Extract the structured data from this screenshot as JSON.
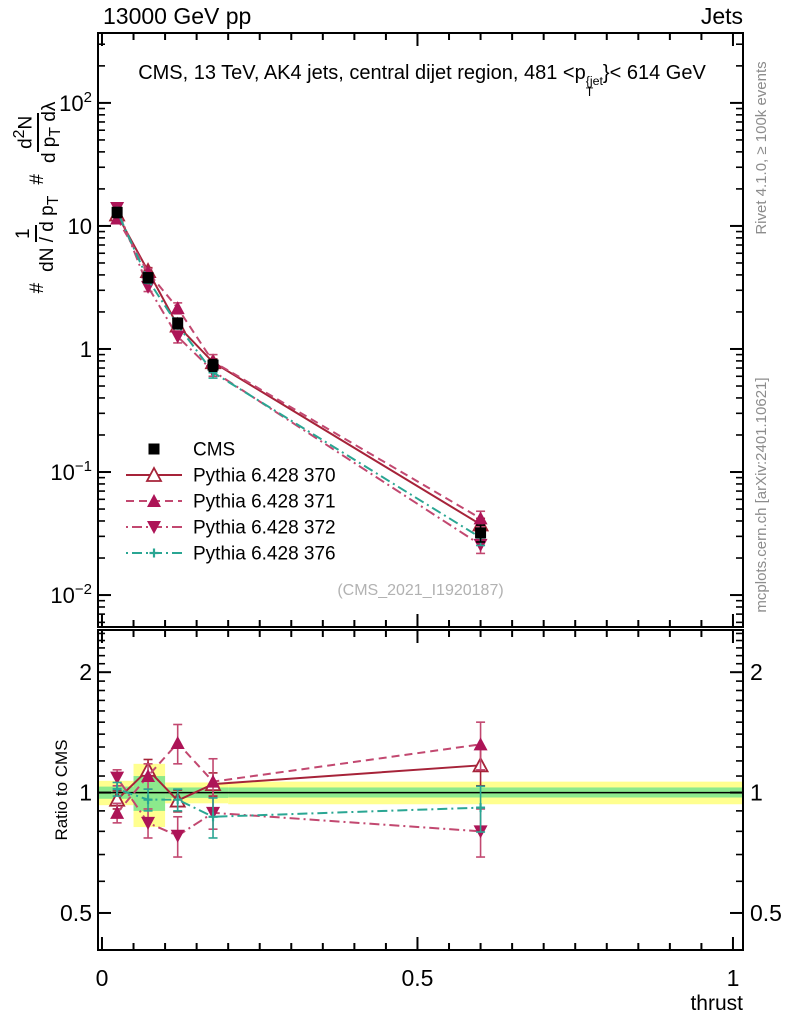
{
  "header": {
    "left": "13000 GeV pp",
    "right": "Jets"
  },
  "title": {
    "pre": "CMS, 13 TeV, AK4 jets, central dijet region, 481 <p",
    "sup": "{jet",
    "sub": "T",
    "post": "}< 614 GeV"
  },
  "ylabel_main": {
    "hash1": "#",
    "f1_num": "1",
    "f1_den_a": "dN / d p",
    "f1_den_sub": "T",
    "hash2": "#",
    "f2_num_a": "d",
    "f2_num_sup": "2",
    "f2_num_b": "N",
    "f2_den_a": "d p",
    "f2_den_sub": "T",
    "f2_den_b": " dλ"
  },
  "ylabel_ratio": "Ratio to CMS",
  "xlabel": "thrust",
  "watermark": "(CMS_2021_I1920187)",
  "side_notes": {
    "top": "Rivet 4.1.0, ≥ 100k events",
    "bottom": "mcplots.cern.ch [arXiv:2401.10621]"
  },
  "chart_data": {
    "type": "line",
    "title": "CMS, 13 TeV, AK4 jets, central dijet region, 481 < pT^jet < 614 GeV",
    "xlabel": "thrust",
    "ylabel_main": "# 1/(dN/dpT) # d2N/(dpT dlambda)",
    "ylabel_ratio": "Ratio to CMS",
    "x_points": [
      0.024,
      0.073,
      0.12,
      0.176,
      0.6
    ],
    "axes": {
      "x": {
        "lim": [
          -0.0063,
          1.0159
        ],
        "major_ticks": [
          0,
          0.5,
          1
        ],
        "tick_labels": [
          "0",
          "0.5",
          "1"
        ],
        "minor_step": 0.05
      },
      "main": {
        "log": true,
        "lim": [
          0.0055,
          370
        ],
        "decade_label_exps": [
          2,
          1,
          0,
          -1,
          -2
        ]
      },
      "ratio": {
        "log": true,
        "lim": [
          0.404,
          2.55
        ],
        "major_ticks": [
          0.5,
          1,
          2
        ],
        "major_labels": [
          "0.5",
          "1",
          "2"
        ],
        "minor_range": [
          0.4,
          2.5
        ],
        "minor_step": 0.1
      }
    },
    "reference_line": 1,
    "band_colors": {
      "yellow": "#ffff8f",
      "green": "#8ce98c"
    },
    "bands": [
      {
        "x0": -0.0063,
        "x1": 0.05,
        "yellow": [
          0.93,
          1.07
        ],
        "green": [
          0.965,
          1.035
        ]
      },
      {
        "x0": 0.05,
        "x1": 0.1,
        "yellow": [
          0.82,
          1.18
        ],
        "green": [
          0.9,
          1.1
        ]
      },
      {
        "x0": 0.1,
        "x1": 0.2,
        "yellow": [
          0.94,
          1.06
        ],
        "green": [
          0.97,
          1.03
        ]
      },
      {
        "x0": 0.2,
        "x1": 1.0159,
        "yellow": [
          0.935,
          1.065
        ],
        "green": [
          0.972,
          1.03
        ]
      }
    ],
    "series": [
      {
        "name": "CMS",
        "marker": "square",
        "line": "none",
        "color": "#000000",
        "marker_color": "#000000",
        "values": [
          12.9,
          3.8,
          1.62,
          0.74,
          0.032
        ],
        "errors": [
          1.2,
          0.35,
          0.16,
          0.08,
          0.005
        ]
      },
      {
        "name": "Pythia 6.428 370",
        "marker": "triangle-open",
        "line": "solid",
        "color": "#a62339",
        "marker_color": "#a62339",
        "values": [
          12.4,
          4.3,
          1.55,
          0.78,
          0.0375
        ],
        "errors": [
          0.55,
          0.28,
          0.1,
          0.05,
          0.0045
        ],
        "ratio": [
          0.96,
          1.14,
          0.955,
          1.05,
          1.17
        ],
        "ratio_errors": [
          0.05,
          0.07,
          0.06,
          0.07,
          0.13
        ]
      },
      {
        "name": "Pythia 6.428 371",
        "marker": "triangle-up",
        "line": "dashed",
        "color": "#c24870",
        "marker_color": "#ad1457",
        "values": [
          11.5,
          4.2,
          2.15,
          0.79,
          0.042
        ],
        "errors": [
          0.55,
          0.3,
          0.22,
          0.11,
          0.006
        ],
        "ratio": [
          0.89,
          1.1,
          1.33,
          1.065,
          1.32
        ],
        "ratio_errors": [
          0.05,
          0.08,
          0.15,
          0.15,
          0.18
        ]
      },
      {
        "name": "Pythia 6.428 372",
        "marker": "triangle-down",
        "line": "dashdot",
        "color": "#c24870",
        "marker_color": "#ad1457",
        "values": [
          14.0,
          3.2,
          1.26,
          0.66,
          0.0256
        ],
        "errors": [
          0.6,
          0.27,
          0.14,
          0.06,
          0.0038
        ],
        "ratio": [
          1.09,
          0.84,
          0.78,
          0.89,
          0.8
        ],
        "ratio_errors": [
          0.05,
          0.07,
          0.09,
          0.08,
          0.11
        ]
      },
      {
        "name": "Pythia 6.428 376",
        "marker": "plus",
        "line": "dashdot",
        "color": "#2aa693",
        "marker_color": "#2aa693",
        "values": [
          13.2,
          3.65,
          1.56,
          0.645,
          0.0293
        ],
        "errors": [
          0.5,
          0.23,
          0.1,
          0.065,
          0.004
        ],
        "ratio": [
          1.02,
          0.96,
          0.96,
          0.87,
          0.917
        ],
        "ratio_errors": [
          0.04,
          0.06,
          0.06,
          0.1,
          0.12
        ]
      }
    ],
    "legend_position": "left-middle"
  }
}
